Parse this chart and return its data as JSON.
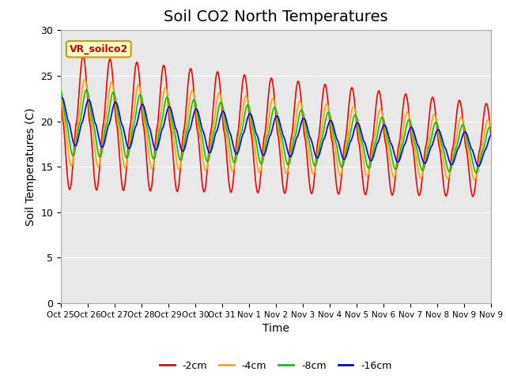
{
  "title": "Soil CO2 North Temperatures",
  "xlabel": "Time",
  "ylabel": "Soil Temperatures (C)",
  "ylim": [
    0,
    30
  ],
  "plot_bg_color": "#e8e8e8",
  "fig_bg_color": "#ffffff",
  "tick_labels": [
    "Oct 25",
    "Oct 26",
    "Oct 27",
    "Oct 28",
    "Oct 29",
    "Oct 30",
    "Oct 31",
    "Nov 1",
    "Nov 2",
    "Nov 3",
    "Nov 4",
    "Nov 5",
    "Nov 6",
    "Nov 7",
    "Nov 8",
    "Nov 9"
  ],
  "series": [
    {
      "label": "-2cm",
      "color": "#ff0000"
    },
    {
      "label": "-4cm",
      "color": "#ffa500"
    },
    {
      "label": "-8cm",
      "color": "#00cc00"
    },
    {
      "label": "-16cm",
      "color": "#0000ff"
    }
  ],
  "legend_box_label": "VR_soilco2",
  "legend_box_bg": "#ffffcc",
  "legend_box_edge": "#cc9900",
  "title_fontsize": 14,
  "axis_label_fontsize": 10,
  "n_days": 16,
  "pts_per_day": 48
}
